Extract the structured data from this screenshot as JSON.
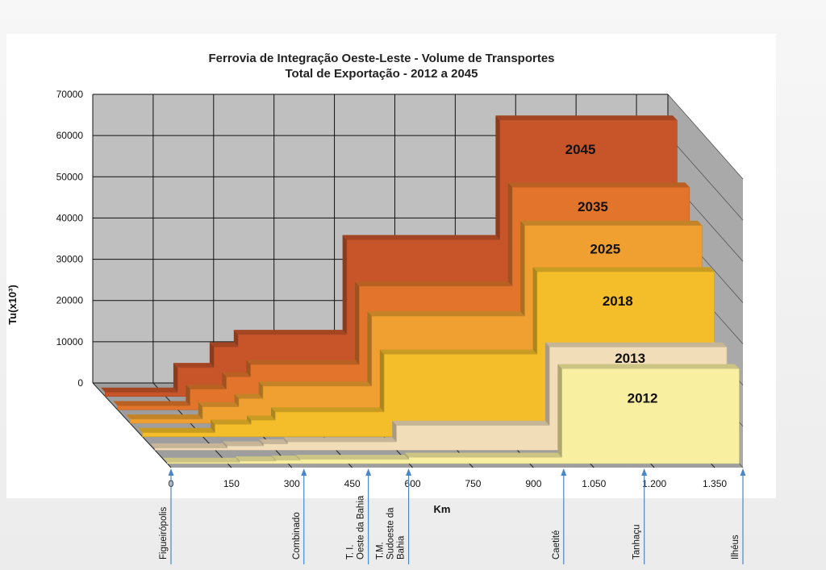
{
  "chart_data": {
    "type": "area",
    "title": "Ferrovia de Integração Oeste-Leste -  Volume de Transportes",
    "subtitle": "Total de Exportação - 2012 a 2045",
    "ylabel": "Tu(x10³)",
    "xlabel": "Km",
    "ylim": [
      0,
      70000
    ],
    "y_ticks": [
      "0",
      "10000",
      "20000",
      "30000",
      "40000",
      "50000",
      "60000",
      "70000"
    ],
    "x_ticks": [
      "0",
      "150",
      "300",
      "450",
      "600",
      "750",
      "900",
      "1.050",
      "1.200",
      "1.350"
    ],
    "grid": true,
    "stations": [
      {
        "name": "Figueirópolis",
        "km": 0
      },
      {
        "name": "Combinado",
        "km": 330
      },
      {
        "name": "T. I.\nOeste da Bahia",
        "km": 490
      },
      {
        "name": "T.M.\nSudoeste da\nBahia",
        "km": 590
      },
      {
        "name": "Caetité",
        "km": 975
      },
      {
        "name": "Tanhaçu",
        "km": 1175
      },
      {
        "name": "Ilhéus",
        "km": 1420
      }
    ],
    "series": [
      {
        "name": "2045",
        "color": "#c8542a",
        "segments": [
          {
            "km": [
              0,
              180
            ],
            "value": 1000
          },
          {
            "km": [
              180,
              270
            ],
            "value": 7000
          },
          {
            "km": [
              270,
              330
            ],
            "value": 12000
          },
          {
            "km": [
              330,
              600
            ],
            "value": 15000
          },
          {
            "km": [
              600,
              980
            ],
            "value": 38000
          },
          {
            "km": [
              980,
              1420
            ],
            "value": 67000
          }
        ]
      },
      {
        "name": "2035",
        "color": "#e2752b",
        "segments": [
          {
            "km": [
              0,
              180
            ],
            "value": 1000
          },
          {
            "km": [
              180,
              270
            ],
            "value": 5000
          },
          {
            "km": [
              270,
              330
            ],
            "value": 8000
          },
          {
            "km": [
              330,
              600
            ],
            "value": 11000
          },
          {
            "km": [
              600,
              980
            ],
            "value": 30000
          },
          {
            "km": [
              980,
              1420
            ],
            "value": 54000
          }
        ]
      },
      {
        "name": "2025",
        "color": "#f0a030",
        "segments": [
          {
            "km": [
              0,
              180
            ],
            "value": 1000
          },
          {
            "km": [
              180,
              270
            ],
            "value": 4000
          },
          {
            "km": [
              270,
              330
            ],
            "value": 6000
          },
          {
            "km": [
              330,
              600
            ],
            "value": 9000
          },
          {
            "km": [
              600,
              980
            ],
            "value": 26000
          },
          {
            "km": [
              980,
              1420
            ],
            "value": 48000
          }
        ]
      },
      {
        "name": "2018",
        "color": "#f4be2a",
        "segments": [
          {
            "km": [
              0,
              180
            ],
            "value": 1000
          },
          {
            "km": [
              180,
              270
            ],
            "value": 3000
          },
          {
            "km": [
              270,
              330
            ],
            "value": 4000
          },
          {
            "km": [
              330,
              600
            ],
            "value": 6000
          },
          {
            "km": [
              600,
              980
            ],
            "value": 20000
          },
          {
            "km": [
              980,
              1420
            ],
            "value": 40000
          }
        ]
      },
      {
        "name": "2013",
        "color": "#f1ddb8",
        "segments": [
          {
            "km": [
              0,
              180
            ],
            "value": 500
          },
          {
            "km": [
              180,
              270
            ],
            "value": 1000
          },
          {
            "km": [
              270,
              330
            ],
            "value": 1500
          },
          {
            "km": [
              330,
              600
            ],
            "value": 2000
          },
          {
            "km": [
              600,
              980
            ],
            "value": 6000
          },
          {
            "km": [
              980,
              1420
            ],
            "value": 25000
          }
        ]
      },
      {
        "name": "2012",
        "color": "#f8efa0",
        "segments": [
          {
            "km": [
              0,
              180
            ],
            "value": 300
          },
          {
            "km": [
              180,
              270
            ],
            "value": 600
          },
          {
            "km": [
              270,
              330
            ],
            "value": 800
          },
          {
            "km": [
              330,
              600
            ],
            "value": 1000
          },
          {
            "km": [
              600,
              980
            ],
            "value": 1500
          },
          {
            "km": [
              980,
              1420
            ],
            "value": 23000
          }
        ]
      }
    ]
  },
  "colors": {
    "plot_background": "#bfbfbf",
    "wall_side": "#a9a9a9",
    "floor": "#9e9e9e",
    "grid": "#111111",
    "arrow": "#4a86c8"
  }
}
